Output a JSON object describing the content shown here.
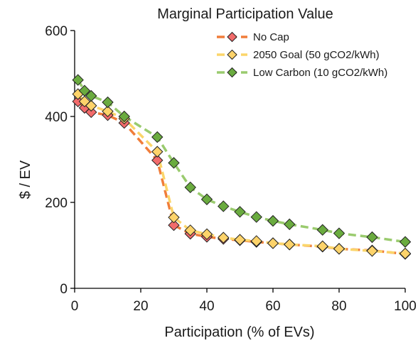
{
  "chart_data": {
    "type": "line",
    "title": "Marginal Participation Value",
    "xlabel": "Participation (% of EVs)",
    "ylabel": "$ / EV",
    "xlim": [
      0,
      100
    ],
    "ylim": [
      0,
      600
    ],
    "xticks": [
      0,
      20,
      40,
      60,
      80,
      100
    ],
    "yticks": [
      0,
      200,
      400,
      600
    ],
    "xtick_labels": [
      "0",
      "20",
      "40",
      "60",
      "80",
      "100"
    ],
    "ytick_labels": [
      "0",
      "200",
      "400",
      "600"
    ],
    "grid": false,
    "legend_position": "top-right",
    "series": [
      {
        "name": "No Cap",
        "line_color": "#f07d3a",
        "marker_color": "#f26b6b",
        "x": [
          1,
          3,
          5,
          10,
          15,
          25,
          30,
          35,
          40,
          45,
          50,
          55,
          60,
          65,
          75,
          80,
          90,
          100
        ],
        "y": [
          435,
          420,
          410,
          403,
          385,
          298,
          147,
          127,
          120,
          115,
          112,
          108,
          105,
          102,
          97,
          92,
          88,
          80
        ]
      },
      {
        "name": "2050 Goal (50 gCO2/kWh)",
        "line_color": "#fbd56a",
        "marker_color": "#fdd36a",
        "x": [
          1,
          3,
          5,
          10,
          15,
          25,
          30,
          35,
          40,
          45,
          50,
          55,
          60,
          65,
          75,
          80,
          90,
          100
        ],
        "y": [
          452,
          435,
          425,
          412,
          395,
          318,
          165,
          135,
          126,
          118,
          113,
          110,
          105,
          102,
          98,
          92,
          87,
          81
        ]
      },
      {
        "name": "Low Carbon (10 gCO2/kWh)",
        "line_color": "#9acb6e",
        "marker_color": "#6aab3f",
        "x": [
          1,
          3,
          5,
          10,
          15,
          25,
          30,
          35,
          40,
          45,
          50,
          55,
          60,
          65,
          75,
          80,
          90,
          100
        ],
        "y": [
          485,
          460,
          448,
          433,
          400,
          352,
          292,
          235,
          207,
          191,
          178,
          166,
          157,
          149,
          136,
          128,
          119,
          108
        ]
      }
    ]
  }
}
